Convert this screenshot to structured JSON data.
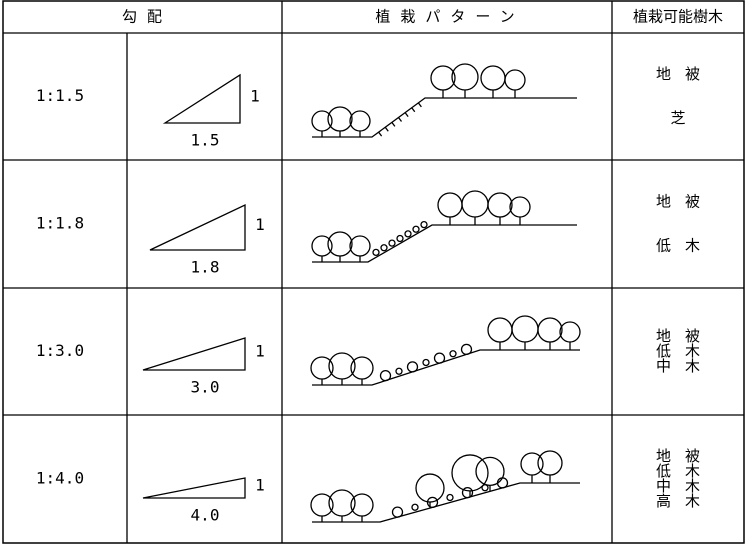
{
  "table": {
    "header": [
      "勾配",
      "植栽パターン",
      "植栽可能樹木"
    ],
    "rows": [
      {
        "slope": "1:1.5",
        "height_label": "1",
        "base_label": "1.5",
        "trees": [
          "地被",
          "芝"
        ]
      },
      {
        "slope": "1:1.8",
        "height_label": "1",
        "base_label": "1.8",
        "trees": [
          "地被",
          "低木"
        ]
      },
      {
        "slope": "1:3.0",
        "height_label": "1",
        "base_label": "3.0",
        "trees": [
          "地被",
          "低木",
          "中木"
        ]
      },
      {
        "slope": "1:4.0",
        "height_label": "1",
        "base_label": "4.0",
        "trees": [
          "地被",
          "低木",
          "中木",
          "高木"
        ]
      }
    ]
  }
}
